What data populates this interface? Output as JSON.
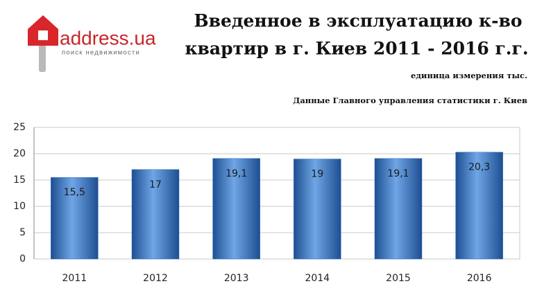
{
  "logo": {
    "name": "address.ua",
    "tagline": "поиск недвижимости"
  },
  "chart_data": {
    "type": "bar",
    "title": [
      "Введенное в эксплуатацию  к-во",
      "квартир в г. Киев 2011 - 2016 г.г."
    ],
    "subtitle": "единица измерения тыс.",
    "source": "Данные Главного управления статистики г. Киев",
    "categories": [
      "2011",
      "2012",
      "2013",
      "2014",
      "2015",
      "2016"
    ],
    "values": [
      15.5,
      17,
      19.1,
      19,
      19.1,
      20.3
    ],
    "value_labels": [
      "15,5",
      "17",
      "19,1",
      "19",
      "19,1",
      "20,3"
    ],
    "color": "#2e6db4",
    "ylim": [
      0,
      25
    ],
    "yticks": [
      0,
      5,
      10,
      15,
      20,
      25
    ],
    "grid": true
  }
}
